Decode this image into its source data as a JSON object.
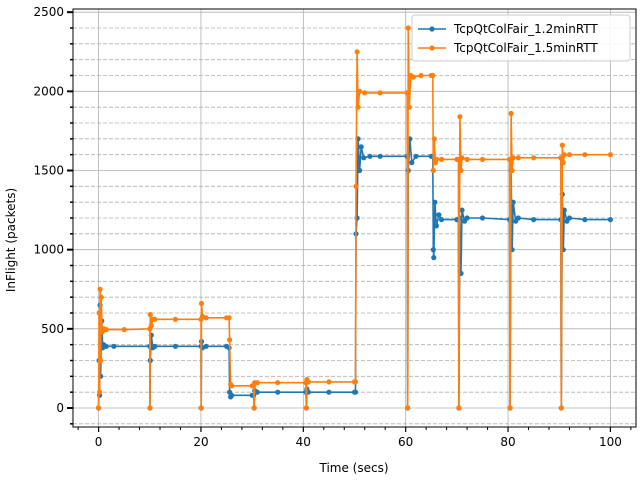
{
  "chart_data": {
    "type": "line",
    "title": "",
    "xlabel": "Time (secs)",
    "ylabel": "InFlight (packets)",
    "xlim": [
      -5,
      105
    ],
    "ylim": [
      -120,
      2520
    ],
    "x_ticks": [
      0,
      20,
      40,
      60,
      80,
      100
    ],
    "x_tick_labels": [
      "0",
      "20",
      "40",
      "60",
      "80",
      "100"
    ],
    "y_ticks": [
      0,
      500,
      1000,
      1500,
      2000,
      2500
    ],
    "y_tick_labels": [
      "0",
      "500",
      "1000",
      "1500",
      "2000",
      "2500"
    ],
    "y_minor_step": 100,
    "x_minor_step": 4,
    "grid": {
      "major": "solid",
      "minor_y": "dashed"
    },
    "legend_position": "upper-right",
    "series": [
      {
        "name": "TcpQtColFair_1.2minRTT",
        "color": "#1f77b4",
        "points": [
          [
            0,
            0
          ],
          [
            0.1,
            300
          ],
          [
            0.2,
            80
          ],
          [
            0.3,
            650
          ],
          [
            0.4,
            200
          ],
          [
            0.6,
            550
          ],
          [
            0.8,
            380
          ],
          [
            1,
            400
          ],
          [
            1.5,
            390
          ],
          [
            3,
            390
          ],
          [
            10,
            390
          ],
          [
            10.05,
            0
          ],
          [
            10.1,
            300
          ],
          [
            10.3,
            460
          ],
          [
            10.6,
            380
          ],
          [
            11,
            390
          ],
          [
            15,
            390
          ],
          [
            20,
            390
          ],
          [
            20.05,
            0
          ],
          [
            20.1,
            420
          ],
          [
            20.3,
            380
          ],
          [
            21,
            390
          ],
          [
            25,
            390
          ],
          [
            25.5,
            380
          ],
          [
            25.6,
            100
          ],
          [
            25.8,
            70
          ],
          [
            26,
            80
          ],
          [
            30,
            80
          ],
          [
            30.3,
            80
          ],
          [
            30.4,
            0
          ],
          [
            30.5,
            110
          ],
          [
            31,
            100
          ],
          [
            35,
            100
          ],
          [
            40.5,
            100
          ],
          [
            40.6,
            0
          ],
          [
            40.7,
            120
          ],
          [
            41,
            100
          ],
          [
            45,
            100
          ],
          [
            50,
            100
          ],
          [
            50.2,
            100
          ],
          [
            50.3,
            1100
          ],
          [
            50.5,
            1200
          ],
          [
            50.7,
            1700
          ],
          [
            51,
            1500
          ],
          [
            51.3,
            1650
          ],
          [
            51.8,
            1580
          ],
          [
            53,
            1590
          ],
          [
            55,
            1590
          ],
          [
            60.3,
            1590
          ],
          [
            60.4,
            0
          ],
          [
            60.5,
            1500
          ],
          [
            60.8,
            1700
          ],
          [
            61.2,
            1550
          ],
          [
            62,
            1590
          ],
          [
            65,
            1590
          ],
          [
            65.3,
            1590
          ],
          [
            65.4,
            1000
          ],
          [
            65.5,
            950
          ],
          [
            65.7,
            1300
          ],
          [
            66,
            1150
          ],
          [
            66.5,
            1220
          ],
          [
            67,
            1190
          ],
          [
            70,
            1190
          ],
          [
            70.3,
            1190
          ],
          [
            70.4,
            0
          ],
          [
            70.6,
            1200
          ],
          [
            70.8,
            850
          ],
          [
            71,
            1250
          ],
          [
            71.5,
            1180
          ],
          [
            72,
            1200
          ],
          [
            75,
            1200
          ],
          [
            80.3,
            1190
          ],
          [
            80.4,
            0
          ],
          [
            80.6,
            1500
          ],
          [
            80.8,
            1000
          ],
          [
            81,
            1300
          ],
          [
            81.5,
            1180
          ],
          [
            82,
            1200
          ],
          [
            85,
            1190
          ],
          [
            90.3,
            1190
          ],
          [
            90.4,
            0
          ],
          [
            90.6,
            1350
          ],
          [
            90.8,
            1000
          ],
          [
            91,
            1250
          ],
          [
            91.5,
            1180
          ],
          [
            92,
            1200
          ],
          [
            95,
            1190
          ],
          [
            100,
            1190
          ]
        ]
      },
      {
        "name": "TcpQtColFair_1.5minRTT",
        "color": "#ff7f0e",
        "points": [
          [
            0,
            0
          ],
          [
            0.1,
            600
          ],
          [
            0.2,
            100
          ],
          [
            0.3,
            750
          ],
          [
            0.4,
            300
          ],
          [
            0.5,
            700
          ],
          [
            0.7,
            480
          ],
          [
            1,
            500
          ],
          [
            1.5,
            495
          ],
          [
            5,
            495
          ],
          [
            10,
            500
          ],
          [
            10.05,
            0
          ],
          [
            10.1,
            590
          ],
          [
            10.3,
            520
          ],
          [
            10.6,
            560
          ],
          [
            11,
            560
          ],
          [
            15,
            560
          ],
          [
            20,
            560
          ],
          [
            20.05,
            0
          ],
          [
            20.1,
            660
          ],
          [
            20.3,
            580
          ],
          [
            21,
            570
          ],
          [
            25,
            570
          ],
          [
            25.5,
            570
          ],
          [
            25.6,
            430
          ],
          [
            25.8,
            150
          ],
          [
            26,
            140
          ],
          [
            30,
            140
          ],
          [
            30.3,
            140
          ],
          [
            30.4,
            0
          ],
          [
            30.5,
            160
          ],
          [
            31,
            160
          ],
          [
            35,
            160
          ],
          [
            40.5,
            160
          ],
          [
            40.6,
            0
          ],
          [
            40.7,
            180
          ],
          [
            41,
            165
          ],
          [
            45,
            165
          ],
          [
            50,
            165
          ],
          [
            50.2,
            165
          ],
          [
            50.3,
            1400
          ],
          [
            50.5,
            2250
          ],
          [
            50.7,
            1900
          ],
          [
            51,
            2000
          ],
          [
            52,
            1990
          ],
          [
            55,
            1990
          ],
          [
            60.3,
            1990
          ],
          [
            60.4,
            0
          ],
          [
            60.5,
            2400
          ],
          [
            60.7,
            1900
          ],
          [
            61,
            2100
          ],
          [
            61.5,
            2090
          ],
          [
            63,
            2100
          ],
          [
            65,
            2100
          ],
          [
            65.3,
            2100
          ],
          [
            65.4,
            1500
          ],
          [
            65.6,
            1700
          ],
          [
            65.8,
            1550
          ],
          [
            66,
            1570
          ],
          [
            67,
            1570
          ],
          [
            70,
            1570
          ],
          [
            70.3,
            1570
          ],
          [
            70.4,
            0
          ],
          [
            70.6,
            1840
          ],
          [
            70.8,
            1500
          ],
          [
            71,
            1580
          ],
          [
            72,
            1570
          ],
          [
            75,
            1570
          ],
          [
            80.3,
            1570
          ],
          [
            80.4,
            0
          ],
          [
            80.6,
            1860
          ],
          [
            80.8,
            1500
          ],
          [
            81,
            1580
          ],
          [
            82,
            1580
          ],
          [
            85,
            1580
          ],
          [
            90.3,
            1580
          ],
          [
            90.4,
            0
          ],
          [
            90.6,
            1660
          ],
          [
            90.8,
            1550
          ],
          [
            91,
            1600
          ],
          [
            92,
            1600
          ],
          [
            95,
            1600
          ],
          [
            100,
            1600
          ]
        ]
      }
    ]
  }
}
